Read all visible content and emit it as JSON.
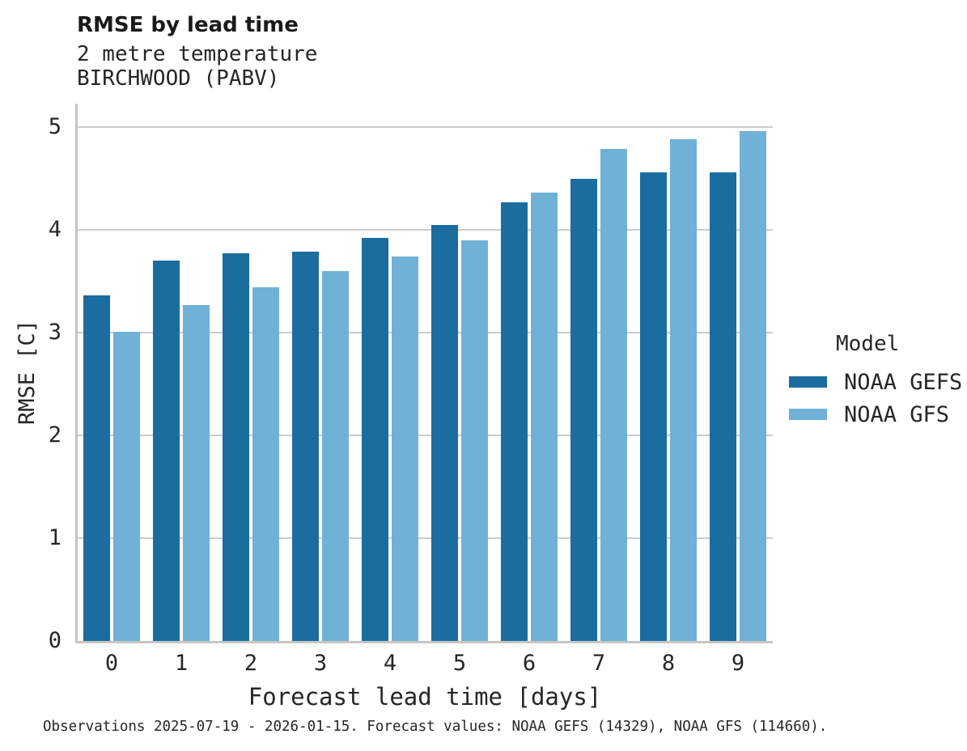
{
  "header": {
    "title": "RMSE by lead time",
    "subtitle_line1": "2 metre temperature",
    "subtitle_line2": "BIRCHWOOD (PABV)"
  },
  "chart_data": {
    "type": "bar",
    "title": "RMSE by lead time",
    "subtitle": "2 metre temperature",
    "station": "BIRCHWOOD (PABV)",
    "categories": [
      "0",
      "1",
      "2",
      "3",
      "4",
      "5",
      "6",
      "7",
      "8",
      "9"
    ],
    "series": [
      {
        "name": "NOAA GEFS",
        "color": "#1a6d9e",
        "values": [
          3.36,
          3.7,
          3.77,
          3.79,
          3.92,
          4.05,
          4.27,
          4.5,
          4.56,
          4.56
        ]
      },
      {
        "name": "NOAA GFS",
        "color": "#70b1d8",
        "values": [
          3.01,
          3.27,
          3.44,
          3.6,
          3.74,
          3.9,
          4.36,
          4.79,
          4.88,
          4.96
        ]
      }
    ],
    "xlabel": "Forecast lead time [days]",
    "ylabel": "RMSE [C]",
    "ylim": [
      0,
      5.23
    ],
    "yticks": [
      0,
      1,
      2,
      3,
      4,
      5
    ],
    "grid": true,
    "legend_title": "Model",
    "legend_position": "right"
  },
  "footer": {
    "note": "Observations 2025-07-19 - 2026-01-15. Forecast values: NOAA GEFS (14329), NOAA GFS (114660)."
  }
}
